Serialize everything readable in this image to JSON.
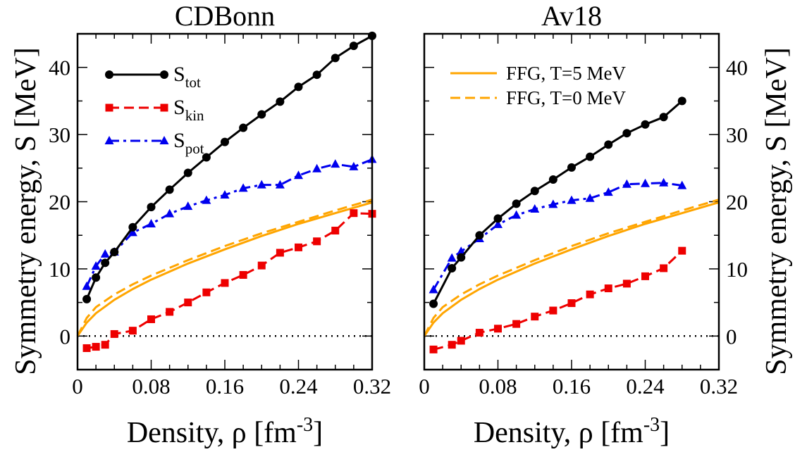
{
  "shared": {
    "ylabel": "Symmetry energy, S [MeV]",
    "xlabel_main": "Density, ρ [fm",
    "xlabel_sup": "-3",
    "xlabel_close": "]",
    "xticks": [
      0,
      0.08,
      0.16,
      0.24,
      0.32
    ],
    "xtick_labels": [
      "0",
      "0.08",
      "0.16",
      "0.24",
      "0.32"
    ],
    "yticks": [
      0,
      10,
      20,
      30,
      40
    ],
    "ytick_labels": [
      "0",
      "10",
      "20",
      "30",
      "40"
    ],
    "xlim": [
      0,
      0.32
    ],
    "ylim": [
      -5,
      45
    ],
    "colors": {
      "tot": "#000000",
      "kin": "#ee0000",
      "pot": "#0000ee",
      "ffg": "#ffa500"
    }
  },
  "chart_data": [
    {
      "type": "line",
      "title": "CDBonn",
      "legend": [
        {
          "base": "S",
          "sub": "tot",
          "series": "tot"
        },
        {
          "base": "S",
          "sub": "kin",
          "series": "kin"
        },
        {
          "base": "S",
          "sub": "pot",
          "series": "pot"
        }
      ],
      "series": [
        {
          "key": "tot",
          "marker": "circle",
          "dash": "solid",
          "x": [
            0.01,
            0.02,
            0.03,
            0.04,
            0.06,
            0.08,
            0.1,
            0.12,
            0.14,
            0.16,
            0.18,
            0.2,
            0.22,
            0.24,
            0.26,
            0.28,
            0.3,
            0.32
          ],
          "y": [
            5.5,
            8.7,
            10.9,
            12.5,
            16.2,
            19.2,
            21.8,
            24.3,
            26.6,
            28.9,
            31.0,
            33.0,
            34.9,
            37.1,
            38.9,
            41.4,
            43.2,
            44.7
          ]
        },
        {
          "key": "kin",
          "marker": "square",
          "dash": "dashed",
          "x": [
            0.01,
            0.02,
            0.03,
            0.04,
            0.06,
            0.08,
            0.1,
            0.12,
            0.14,
            0.16,
            0.18,
            0.2,
            0.22,
            0.24,
            0.26,
            0.28,
            0.3,
            0.32
          ],
          "y": [
            -1.8,
            -1.6,
            -1.3,
            0.3,
            0.8,
            2.5,
            3.6,
            5.0,
            6.5,
            7.9,
            9.1,
            10.5,
            12.4,
            13.2,
            14.1,
            15.7,
            18.3,
            18.2
          ]
        },
        {
          "key": "pot",
          "marker": "triangle",
          "dash": "dashdot",
          "x": [
            0.01,
            0.02,
            0.03,
            0.04,
            0.06,
            0.08,
            0.1,
            0.12,
            0.14,
            0.16,
            0.18,
            0.2,
            0.22,
            0.24,
            0.26,
            0.28,
            0.3,
            0.32
          ],
          "y": [
            7.4,
            10.4,
            12.2,
            12.5,
            15.4,
            16.7,
            18.2,
            19.3,
            20.2,
            21.0,
            22.0,
            22.5,
            22.5,
            23.9,
            24.9,
            25.6,
            25.2,
            26.3
          ]
        },
        {
          "key": "ffg5",
          "marker": "none",
          "dash": "solid",
          "x": [
            0.0,
            0.01,
            0.02,
            0.04,
            0.06,
            0.08,
            0.12,
            0.16,
            0.2,
            0.24,
            0.28,
            0.32
          ],
          "y": [
            0.0,
            2.0,
            3.4,
            5.4,
            7.0,
            8.4,
            10.8,
            12.9,
            14.9,
            16.7,
            18.3,
            19.9
          ]
        },
        {
          "key": "ffg0",
          "marker": "none",
          "dash": "dashed",
          "x": [
            0.0,
            0.01,
            0.02,
            0.04,
            0.06,
            0.08,
            0.12,
            0.16,
            0.2,
            0.24,
            0.28,
            0.32
          ],
          "y": [
            0.0,
            2.7,
            4.3,
            6.2,
            7.7,
            9.0,
            11.3,
            13.4,
            15.3,
            17.0,
            18.7,
            20.3
          ]
        }
      ]
    },
    {
      "type": "line",
      "title": "Av18",
      "legend": [
        {
          "label": "FFG, T=5 MeV",
          "series": "ffg5"
        },
        {
          "label": "FFG, T=0 MeV",
          "series": "ffg0"
        }
      ],
      "series": [
        {
          "key": "tot",
          "marker": "circle",
          "dash": "solid",
          "x": [
            0.01,
            0.03,
            0.04,
            0.06,
            0.08,
            0.1,
            0.12,
            0.14,
            0.16,
            0.18,
            0.2,
            0.22,
            0.24,
            0.26,
            0.28
          ],
          "y": [
            4.8,
            10.1,
            11.7,
            15.0,
            17.5,
            19.7,
            21.6,
            23.3,
            25.1,
            26.7,
            28.5,
            30.2,
            31.5,
            32.6,
            35.0
          ]
        },
        {
          "key": "kin",
          "marker": "square",
          "dash": "dashed",
          "x": [
            0.01,
            0.03,
            0.04,
            0.06,
            0.08,
            0.1,
            0.12,
            0.14,
            0.16,
            0.18,
            0.2,
            0.22,
            0.24,
            0.26,
            0.28
          ],
          "y": [
            -2.0,
            -1.3,
            -0.7,
            0.5,
            1.1,
            1.8,
            2.9,
            3.8,
            4.9,
            6.2,
            7.1,
            7.8,
            8.9,
            10.1,
            12.7
          ]
        },
        {
          "key": "pot",
          "marker": "triangle",
          "dash": "dashdot",
          "x": [
            0.01,
            0.03,
            0.04,
            0.06,
            0.08,
            0.1,
            0.12,
            0.14,
            0.16,
            0.18,
            0.2,
            0.22,
            0.24,
            0.26,
            0.28
          ],
          "y": [
            6.9,
            11.6,
            12.6,
            14.5,
            16.6,
            18.0,
            18.9,
            19.6,
            20.2,
            20.5,
            21.4,
            22.6,
            22.7,
            22.8,
            22.4
          ]
        },
        {
          "key": "ffg5",
          "marker": "none",
          "dash": "solid",
          "x": [
            0.0,
            0.01,
            0.02,
            0.04,
            0.06,
            0.08,
            0.12,
            0.16,
            0.2,
            0.24,
            0.28,
            0.32
          ],
          "y": [
            0.0,
            2.0,
            3.4,
            5.4,
            7.0,
            8.4,
            10.8,
            12.9,
            14.9,
            16.7,
            18.3,
            19.9
          ]
        },
        {
          "key": "ffg0",
          "marker": "none",
          "dash": "dashed",
          "x": [
            0.0,
            0.01,
            0.02,
            0.04,
            0.06,
            0.08,
            0.12,
            0.16,
            0.2,
            0.24,
            0.28,
            0.32
          ],
          "y": [
            0.0,
            2.7,
            4.3,
            6.2,
            7.7,
            9.0,
            11.3,
            13.4,
            15.3,
            17.0,
            18.7,
            20.3
          ]
        }
      ]
    }
  ]
}
